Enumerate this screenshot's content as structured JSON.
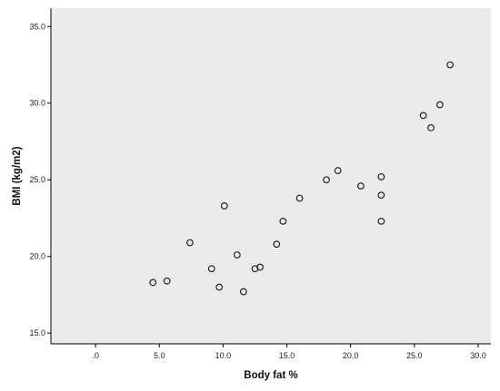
{
  "chart_data": {
    "type": "scatter",
    "xlabel": "Body fat %",
    "ylabel": "BMI (kg/m2)",
    "xlim": [
      -3.5,
      31
    ],
    "ylim": [
      14.3,
      36.2
    ],
    "x_ticks": [
      0,
      5,
      10,
      15,
      20,
      25,
      30
    ],
    "x_tick_labels": [
      ".0",
      "5.0",
      "10.0",
      "15.0",
      "20.0",
      "25.0",
      "30.0"
    ],
    "y_ticks": [
      15,
      20,
      25,
      30,
      35
    ],
    "y_tick_labels": [
      "15.0",
      "20.0",
      "25.0",
      "30.0",
      "35.0"
    ],
    "grid": false,
    "background": "#f0f0f0",
    "marker": "open-circle",
    "points": [
      {
        "x": 4.5,
        "y": 18.3
      },
      {
        "x": 5.6,
        "y": 18.4
      },
      {
        "x": 7.4,
        "y": 20.9
      },
      {
        "x": 9.1,
        "y": 19.2
      },
      {
        "x": 9.7,
        "y": 18.0
      },
      {
        "x": 10.1,
        "y": 23.3
      },
      {
        "x": 11.1,
        "y": 20.1
      },
      {
        "x": 11.6,
        "y": 17.7
      },
      {
        "x": 12.5,
        "y": 19.2
      },
      {
        "x": 12.9,
        "y": 19.3
      },
      {
        "x": 14.2,
        "y": 20.8
      },
      {
        "x": 14.7,
        "y": 22.3
      },
      {
        "x": 16.0,
        "y": 23.8
      },
      {
        "x": 18.1,
        "y": 25.0
      },
      {
        "x": 19.0,
        "y": 25.6
      },
      {
        "x": 20.8,
        "y": 24.6
      },
      {
        "x": 22.4,
        "y": 25.2
      },
      {
        "x": 22.4,
        "y": 24.0
      },
      {
        "x": 22.4,
        "y": 22.3
      },
      {
        "x": 25.7,
        "y": 29.2
      },
      {
        "x": 26.3,
        "y": 28.4
      },
      {
        "x": 27.0,
        "y": 29.9
      },
      {
        "x": 27.8,
        "y": 32.5
      }
    ]
  }
}
